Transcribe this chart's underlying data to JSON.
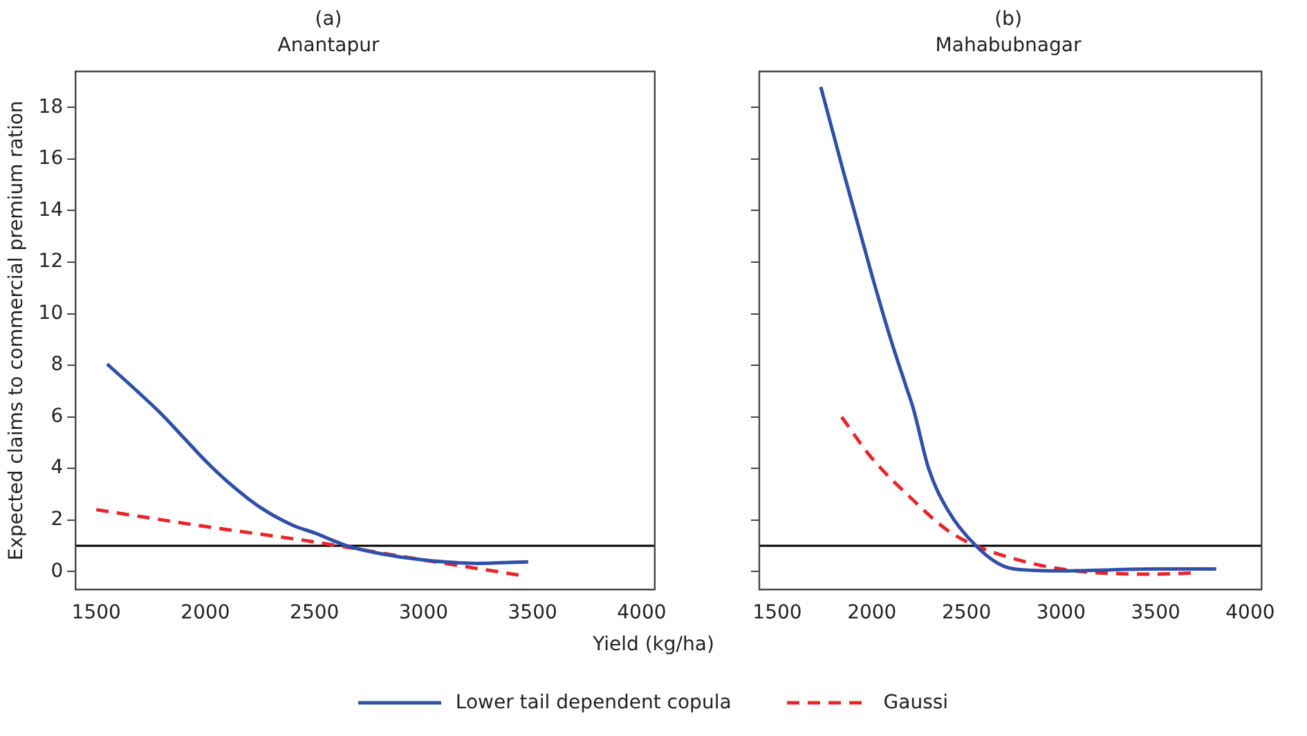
{
  "chart_data": [
    {
      "type": "line",
      "title": "(a)",
      "subtitle": "Anantapur",
      "xlabel": "Yield (kg/ha)",
      "ylabel": "Expected claims to commercial premium ration",
      "xlim": [
        1405,
        4060
      ],
      "xticks": [
        1500,
        2000,
        2500,
        3000,
        3500,
        4000
      ],
      "ylim": [
        -0.7,
        19.4
      ],
      "yticks": [
        0,
        2,
        4,
        6,
        8,
        10,
        12,
        14,
        16,
        18
      ],
      "grid": false,
      "legend": "bottom",
      "marker": "none",
      "ref_lines": [
        {
          "axis": "y",
          "value": 1,
          "color": "#000000"
        }
      ],
      "series": [
        {
          "name": "Lower tail dependent copula",
          "color": "#2f4fa8",
          "line_style": "solid",
          "x": [
            1550,
            1700,
            1800,
            1900,
            2000,
            2100,
            2250,
            2400,
            2500,
            2650,
            2800,
            3000,
            3250,
            3480
          ],
          "values": [
            8.05,
            6.9,
            6.1,
            5.2,
            4.3,
            3.5,
            2.5,
            1.8,
            1.5,
            1.0,
            0.7,
            0.45,
            0.32,
            0.38
          ]
        },
        {
          "name": "Gaussi",
          "color": "#e8262a",
          "line_style": "dashed",
          "x": [
            1500,
            2000,
            2500,
            3000,
            3450
          ],
          "values": [
            2.4,
            1.75,
            1.15,
            0.45,
            -0.15
          ]
        }
      ]
    },
    {
      "type": "line",
      "title": "(b)",
      "subtitle": "Mahabubnagar",
      "xlim": [
        1405,
        4060
      ],
      "xticks": [
        1500,
        2000,
        2500,
        3000,
        3500,
        4000
      ],
      "ylim": [
        -0.7,
        19.4
      ],
      "yticks": [
        0,
        2,
        4,
        6,
        8,
        10,
        12,
        14,
        16,
        18
      ],
      "grid": false,
      "legend": "bottom",
      "marker": "none",
      "tick_labels": "x",
      "ref_lines": [
        {
          "axis": "y",
          "value": 1,
          "color": "#000000"
        }
      ],
      "series": [
        {
          "name": "Lower tail dependent copula",
          "color": "#2f4fa8",
          "line_style": "solid",
          "x": [
            1730,
            1850,
            2000,
            2100,
            2180,
            2220,
            2300,
            2400,
            2550,
            2700,
            2850,
            3000,
            3500,
            3820
          ],
          "values": [
            18.8,
            15.5,
            11.5,
            9.0,
            7.2,
            6.3,
            4.0,
            2.4,
            1.0,
            0.2,
            0.05,
            0.03,
            0.1,
            0.1
          ]
        },
        {
          "name": "Gaussi",
          "color": "#e8262a",
          "line_style": "dashed",
          "x": [
            1840,
            2000,
            2200,
            2400,
            2550,
            2800,
            3000,
            3200,
            3500,
            3700
          ],
          "values": [
            6.0,
            4.4,
            2.9,
            1.6,
            1.0,
            0.4,
            0.1,
            -0.05,
            -0.1,
            -0.05
          ]
        }
      ]
    }
  ]
}
